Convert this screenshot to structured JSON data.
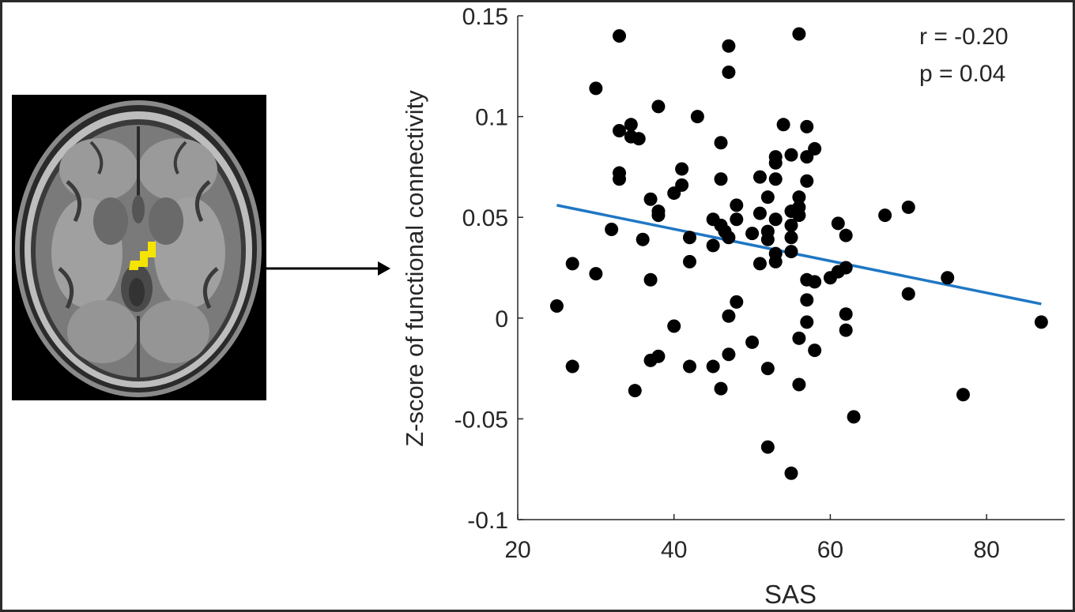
{
  "figure": {
    "brain_image": "axial-mri-slice-with-highlighted-region",
    "region_color": "#f5e400",
    "arrow_icon": "right-arrow"
  },
  "chart_data": {
    "type": "scatter",
    "xlabel": "SAS",
    "ylabel": "Z-score of functional connectivity",
    "xlim": [
      20,
      90
    ],
    "ylim": [
      -0.1,
      0.15
    ],
    "xticks": [
      20,
      40,
      60,
      80
    ],
    "xtick_labels": [
      "20",
      "40",
      "60",
      "80"
    ],
    "yticks": [
      -0.1,
      -0.05,
      0,
      0.05,
      0.1,
      0.15
    ],
    "ytick_labels": [
      "-0.1",
      "-0.05",
      "0",
      "0.05",
      "0.1",
      "0.15"
    ],
    "annotations": [
      "r = -0.20",
      "p = 0.04"
    ],
    "grid": false,
    "point_color": "#000000",
    "line_color": "#1f77c4",
    "fit_line": {
      "x": [
        25,
        87
      ],
      "y": [
        0.056,
        0.007
      ]
    },
    "points": [
      [
        25,
        0.006
      ],
      [
        27,
        0.027
      ],
      [
        27,
        -0.024
      ],
      [
        30,
        0.114
      ],
      [
        30,
        0.022
      ],
      [
        32,
        0.044
      ],
      [
        33,
        0.14
      ],
      [
        33,
        0.093
      ],
      [
        33,
        0.072
      ],
      [
        33,
        0.069
      ],
      [
        34.5,
        0.096
      ],
      [
        34.5,
        0.09
      ],
      [
        35.5,
        0.089
      ],
      [
        36,
        0.039
      ],
      [
        35,
        -0.036
      ],
      [
        37,
        0.059
      ],
      [
        37,
        0.019
      ],
      [
        37,
        -0.021
      ],
      [
        38,
        0.105
      ],
      [
        38,
        0.053
      ],
      [
        38,
        0.051
      ],
      [
        38,
        -0.019
      ],
      [
        40,
        0.062
      ],
      [
        40,
        -0.004
      ],
      [
        41,
        0.074
      ],
      [
        41,
        0.066
      ],
      [
        42,
        0.04
      ],
      [
        42,
        0.028
      ],
      [
        42,
        -0.024
      ],
      [
        43,
        0.1
      ],
      [
        45,
        0.049
      ],
      [
        45,
        0.036
      ],
      [
        45,
        -0.024
      ],
      [
        46,
        0.087
      ],
      [
        46,
        0.069
      ],
      [
        46,
        0.046
      ],
      [
        46,
        -0.035
      ],
      [
        46.5,
        0.043
      ],
      [
        47,
        0.135
      ],
      [
        47,
        0.122
      ],
      [
        47,
        0.04
      ],
      [
        47,
        0.001
      ],
      [
        47,
        -0.018
      ],
      [
        48,
        0.056
      ],
      [
        48,
        0.049
      ],
      [
        48,
        0.008
      ],
      [
        50,
        0.042
      ],
      [
        50,
        -0.012
      ],
      [
        51,
        0.07
      ],
      [
        51,
        0.052
      ],
      [
        51,
        0.027
      ],
      [
        52,
        0.06
      ],
      [
        52,
        0.043
      ],
      [
        52,
        0.039
      ],
      [
        52,
        -0.025
      ],
      [
        52,
        -0.064
      ],
      [
        53,
        0.08
      ],
      [
        53,
        0.077
      ],
      [
        53,
        0.069
      ],
      [
        53,
        0.049
      ],
      [
        53,
        0.032
      ],
      [
        53,
        0.028
      ],
      [
        54,
        0.096
      ],
      [
        55,
        0.081
      ],
      [
        55,
        0.053
      ],
      [
        55,
        0.046
      ],
      [
        55,
        0.04
      ],
      [
        55,
        0.033
      ],
      [
        55,
        -0.077
      ],
      [
        56,
        0.141
      ],
      [
        56,
        0.06
      ],
      [
        56,
        0.055
      ],
      [
        56,
        0.051
      ],
      [
        56,
        -0.01
      ],
      [
        56,
        -0.033
      ],
      [
        57,
        0.095
      ],
      [
        57,
        0.08
      ],
      [
        57,
        0.068
      ],
      [
        57,
        0.019
      ],
      [
        57,
        0.009
      ],
      [
        57,
        -0.002
      ],
      [
        58,
        0.084
      ],
      [
        58,
        0.018
      ],
      [
        58,
        -0.016
      ],
      [
        60,
        0.02
      ],
      [
        61,
        0.047
      ],
      [
        61,
        0.023
      ],
      [
        62,
        0.041
      ],
      [
        62,
        0.025
      ],
      [
        62,
        0.002
      ],
      [
        62,
        -0.006
      ],
      [
        63,
        -0.049
      ],
      [
        67,
        0.051
      ],
      [
        70,
        0.055
      ],
      [
        70,
        0.012
      ],
      [
        75,
        0.02
      ],
      [
        77,
        -0.038
      ],
      [
        87,
        -0.002
      ]
    ]
  }
}
